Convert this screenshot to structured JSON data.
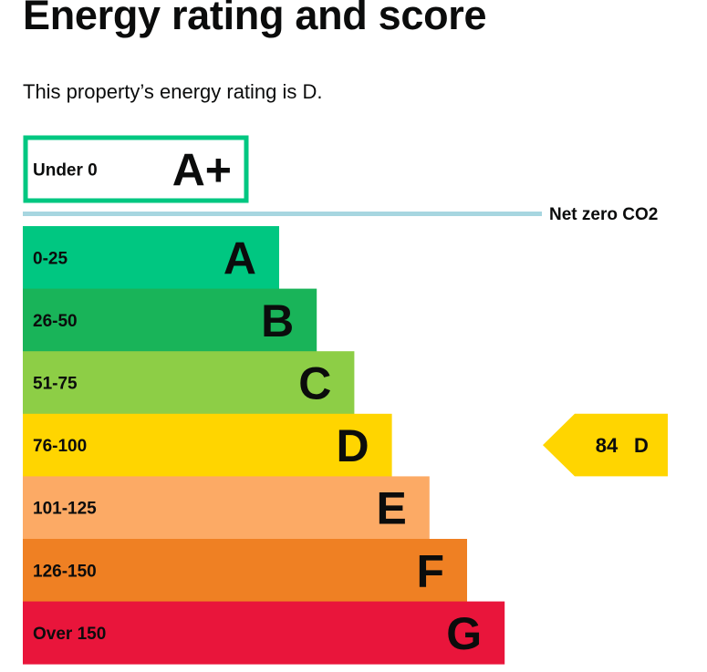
{
  "page": {
    "title": "Energy rating and score",
    "summary_prefix": "This property’s energy rating is ",
    "summary_rating": "D",
    "summary_suffix": "."
  },
  "chart_data": {
    "type": "bar",
    "orientation": "horizontal",
    "categories": [
      "A+",
      "A",
      "B",
      "C",
      "D",
      "E",
      "F",
      "G"
    ],
    "bands": [
      {
        "letter": "A+",
        "range": "Under 0",
        "min": null,
        "max": 0,
        "color": "#00c781",
        "style": "outline"
      },
      {
        "letter": "A",
        "range": "0-25",
        "min": 0,
        "max": 25,
        "color": "#00c781",
        "style": "filled"
      },
      {
        "letter": "B",
        "range": "26-50",
        "min": 26,
        "max": 50,
        "color": "#19b459",
        "style": "filled"
      },
      {
        "letter": "C",
        "range": "51-75",
        "min": 51,
        "max": 75,
        "color": "#8dce46",
        "style": "filled"
      },
      {
        "letter": "D",
        "range": "76-100",
        "min": 76,
        "max": 100,
        "color": "#ffd500",
        "style": "filled"
      },
      {
        "letter": "E",
        "range": "101-125",
        "min": 101,
        "max": 125,
        "color": "#fcaa65",
        "style": "filled"
      },
      {
        "letter": "F",
        "range": "126-150",
        "min": 126,
        "max": 150,
        "color": "#ef8023",
        "style": "filled"
      },
      {
        "letter": "G",
        "range": "Over 150",
        "min": 151,
        "max": null,
        "color": "#e9153b",
        "style": "filled"
      }
    ],
    "net_zero": {
      "label": "Net zero CO2",
      "color": "#a7d6e0"
    },
    "current": {
      "score": 84,
      "score_label": "84",
      "letter": "D",
      "band_index": 4,
      "color": "#ffd500"
    }
  }
}
